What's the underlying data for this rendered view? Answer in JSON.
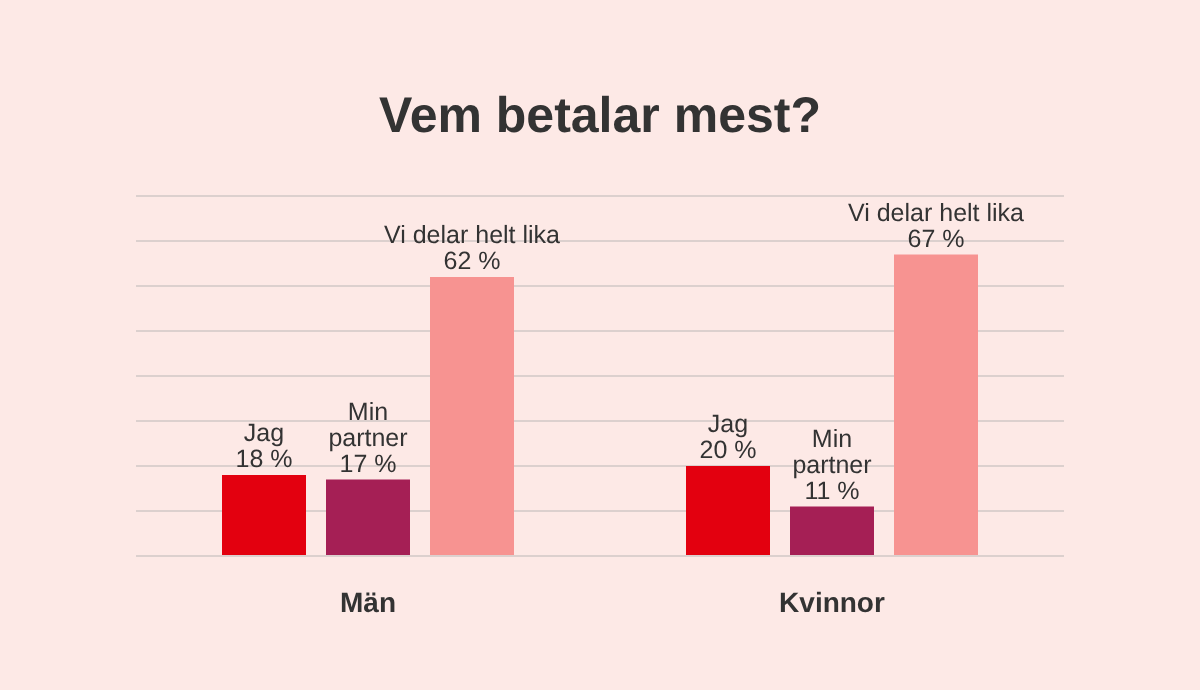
{
  "chart_data": {
    "type": "bar",
    "title": "Vem betalar mest?",
    "categories": [
      "Män",
      "Kvinnor"
    ],
    "series": [
      {
        "name": "Jag",
        "color": "#e3000f",
        "values": [
          18,
          20
        ],
        "value_labels": [
          "18 %",
          "20 %"
        ]
      },
      {
        "name": "Min partner",
        "color": "#a51f55",
        "values": [
          17,
          11
        ],
        "value_labels": [
          "17 %",
          "11 %"
        ]
      },
      {
        "name": "Vi delar helt lika",
        "color": "#f79391",
        "values": [
          62,
          67
        ],
        "value_labels": [
          "62 %",
          "67 %"
        ]
      }
    ],
    "ylim": [
      0,
      80
    ],
    "yticks": [
      {
        "value": 0,
        "label": null
      },
      {
        "value": 10,
        "label": null
      },
      {
        "value": 20,
        "label": null
      },
      {
        "value": 30,
        "label": null
      },
      {
        "value": 40,
        "label": null
      },
      {
        "value": 50,
        "label": null
      },
      {
        "value": 60,
        "label": null
      },
      {
        "value": 70,
        "label": null
      },
      {
        "value": 80,
        "label": null
      }
    ],
    "grid": "y",
    "tick_labels": "x",
    "legend": false
  }
}
